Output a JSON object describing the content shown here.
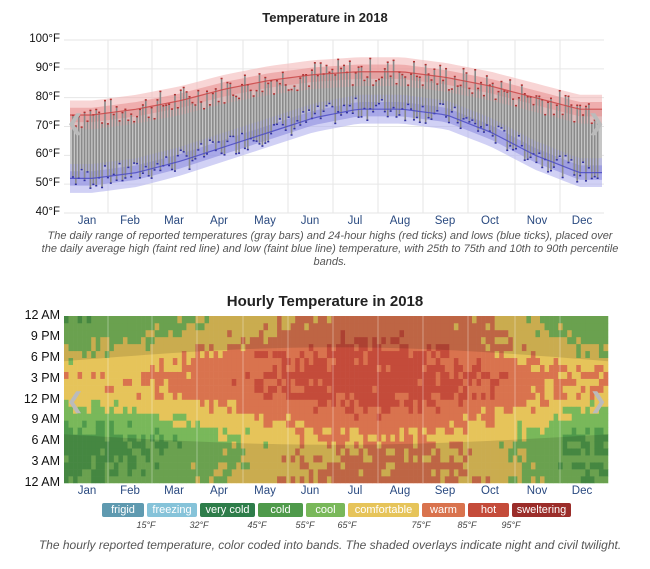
{
  "top_chart": {
    "title": "Temperature in 2018",
    "caption": "The daily range of reported temperatures (gray bars) and 24-hour highs (red ticks) and lows (blue ticks), placed over the daily average high (faint red line) and low (faint blue line) temperature, with 25th to 75th and 10th to 90th percentile bands.",
    "y_ticks": [
      "100°F",
      "90°F",
      "80°F",
      "70°F",
      "60°F",
      "50°F",
      "40°F"
    ],
    "months": [
      "Jan",
      "Feb",
      "Mar",
      "Apr",
      "May",
      "Jun",
      "Jul",
      "Aug",
      "Sep",
      "Oct",
      "Nov",
      "Dec"
    ]
  },
  "bottom_chart": {
    "title": "Hourly Temperature in 2018",
    "caption": "The hourly reported temperature, color coded into bands. The shaded overlays indicate night and civil twilight.",
    "y_ticks": [
      "12 AM",
      "9 PM",
      "6 PM",
      "3 PM",
      "12 PM",
      "9 AM",
      "6 AM",
      "3 AM",
      "12 AM"
    ],
    "months": [
      "Jan",
      "Feb",
      "Mar",
      "Apr",
      "May",
      "Jun",
      "Jul",
      "Aug",
      "Sep",
      "Oct",
      "Nov",
      "Dec"
    ]
  },
  "legend": {
    "bands": [
      {
        "label": "frigid",
        "color": "#5f9ab0"
      },
      {
        "label": "freezing",
        "color": "#86c3d9"
      },
      {
        "label": "very cold",
        "color": "#2e7d4a"
      },
      {
        "label": "cold",
        "color": "#4f9a4b"
      },
      {
        "label": "cool",
        "color": "#79b85a"
      },
      {
        "label": "comfortable",
        "color": "#e6c45a"
      },
      {
        "label": "warm",
        "color": "#d9734e"
      },
      {
        "label": "hot",
        "color": "#c44b3a"
      },
      {
        "label": "sweltering",
        "color": "#9b2d2a"
      }
    ],
    "thresholds": [
      "15°F",
      "32°F",
      "45°F",
      "55°F",
      "65°F",
      "75°F",
      "85°F",
      "95°F"
    ]
  },
  "chart_data": [
    {
      "type": "area",
      "title": "Temperature in 2018",
      "xlabel": "",
      "ylabel": "",
      "ylim": [
        40,
        100
      ],
      "categories": [
        "Jan",
        "Feb",
        "Mar",
        "Apr",
        "May",
        "Jun",
        "Jul",
        "Aug",
        "Sep",
        "Oct",
        "Nov",
        "Dec"
      ],
      "series": [
        {
          "name": "average high",
          "values": [
            74,
            76,
            79,
            83,
            86,
            88,
            89,
            89,
            87,
            84,
            80,
            76
          ]
        },
        {
          "name": "average low",
          "values": [
            52,
            54,
            58,
            63,
            68,
            73,
            76,
            76,
            74,
            68,
            60,
            54
          ]
        }
      ],
      "grid": true
    },
    {
      "type": "heatmap",
      "title": "Hourly Temperature in 2018",
      "categories": [
        "Jan",
        "Feb",
        "Mar",
        "Apr",
        "May",
        "Jun",
        "Jul",
        "Aug",
        "Sep",
        "Oct",
        "Nov",
        "Dec"
      ],
      "y_categories": [
        "12 AM",
        "3 AM",
        "6 AM",
        "9 AM",
        "12 PM",
        "3 PM",
        "6 PM",
        "9 PM",
        "12 AM"
      ],
      "series": [
        {
          "name": "12 AM",
          "values": [
            55,
            57,
            62,
            67,
            72,
            77,
            79,
            79,
            77,
            71,
            63,
            57
          ]
        },
        {
          "name": "3 AM",
          "values": [
            52,
            54,
            59,
            64,
            70,
            75,
            77,
            77,
            75,
            69,
            60,
            54
          ]
        },
        {
          "name": "6 AM",
          "values": [
            51,
            53,
            58,
            63,
            69,
            74,
            76,
            76,
            74,
            68,
            59,
            53
          ]
        },
        {
          "name": "9 AM",
          "values": [
            59,
            61,
            66,
            71,
            77,
            81,
            82,
            82,
            80,
            75,
            67,
            61
          ]
        },
        {
          "name": "12 PM",
          "values": [
            70,
            72,
            75,
            79,
            84,
            87,
            88,
            88,
            86,
            82,
            77,
            72
          ]
        },
        {
          "name": "3 PM",
          "values": [
            73,
            75,
            78,
            82,
            86,
            88,
            89,
            89,
            87,
            84,
            79,
            75
          ]
        },
        {
          "name": "6 PM",
          "values": [
            66,
            69,
            73,
            78,
            83,
            86,
            87,
            87,
            84,
            78,
            71,
            67
          ]
        },
        {
          "name": "9 PM",
          "values": [
            60,
            62,
            66,
            71,
            76,
            80,
            82,
            82,
            80,
            74,
            66,
            61
          ]
        }
      ]
    }
  ]
}
